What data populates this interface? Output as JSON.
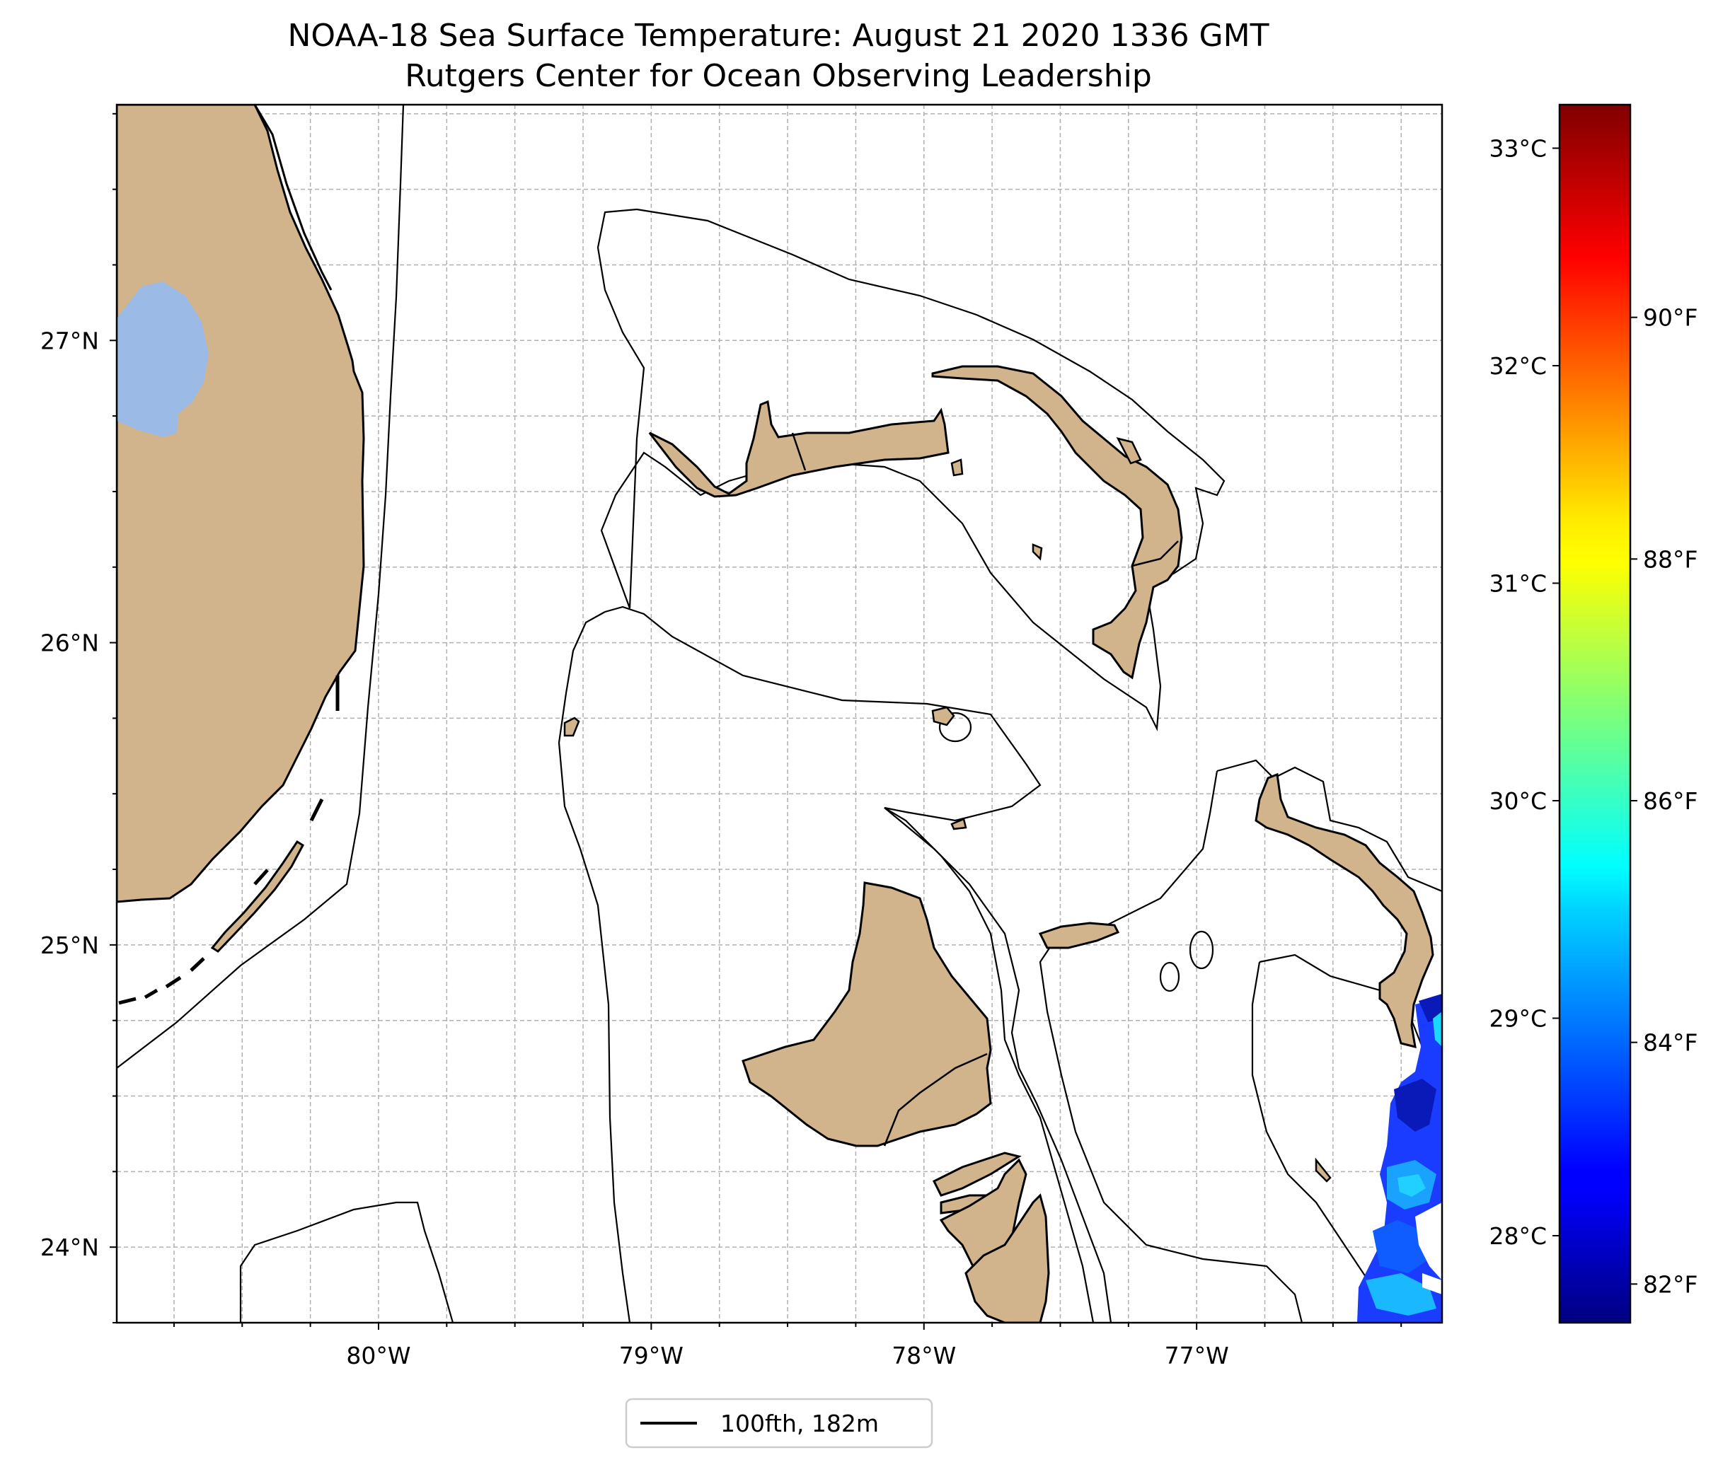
{
  "title_line1": "NOAA-18 Sea Surface Temperature: August 21 2020 1336 GMT",
  "title_line2": "Rutgers Center for Ocean Observing Leadership",
  "map": {
    "lon_range": [
      -80.96,
      -76.1
    ],
    "lat_range": [
      23.75,
      27.78
    ],
    "lon_ticks": [
      {
        "value": -80,
        "label": "80°W"
      },
      {
        "value": -79,
        "label": "79°W"
      },
      {
        "value": -78,
        "label": "78°W"
      },
      {
        "value": -77,
        "label": "77°W"
      }
    ],
    "lat_ticks": [
      {
        "value": 24,
        "label": "24°N"
      },
      {
        "value": 25,
        "label": "25°N"
      },
      {
        "value": 26,
        "label": "26°N"
      },
      {
        "value": 27,
        "label": "27°N"
      }
    ],
    "land_color": "#d2b48c",
    "lake_color": "#9bbbe6",
    "grid": true
  },
  "colorbar": {
    "colormap": "jet",
    "celsius_range": [
      27.6,
      33.2
    ],
    "celsius_ticks": [
      {
        "value": 28,
        "label": "28°C"
      },
      {
        "value": 29,
        "label": "29°C"
      },
      {
        "value": 30,
        "label": "30°C"
      },
      {
        "value": 31,
        "label": "31°C"
      },
      {
        "value": 32,
        "label": "32°C"
      },
      {
        "value": 33,
        "label": "33°C"
      }
    ],
    "fahrenheit_ticks": [
      {
        "value": 82,
        "label": "82°F"
      },
      {
        "value": 84,
        "label": "84°F"
      },
      {
        "value": 86,
        "label": "86°F"
      },
      {
        "value": 88,
        "label": "88°F"
      },
      {
        "value": 90,
        "label": "90°F"
      }
    ]
  },
  "legend": {
    "label": "100fth, 182m",
    "placement": "bottom-center"
  }
}
